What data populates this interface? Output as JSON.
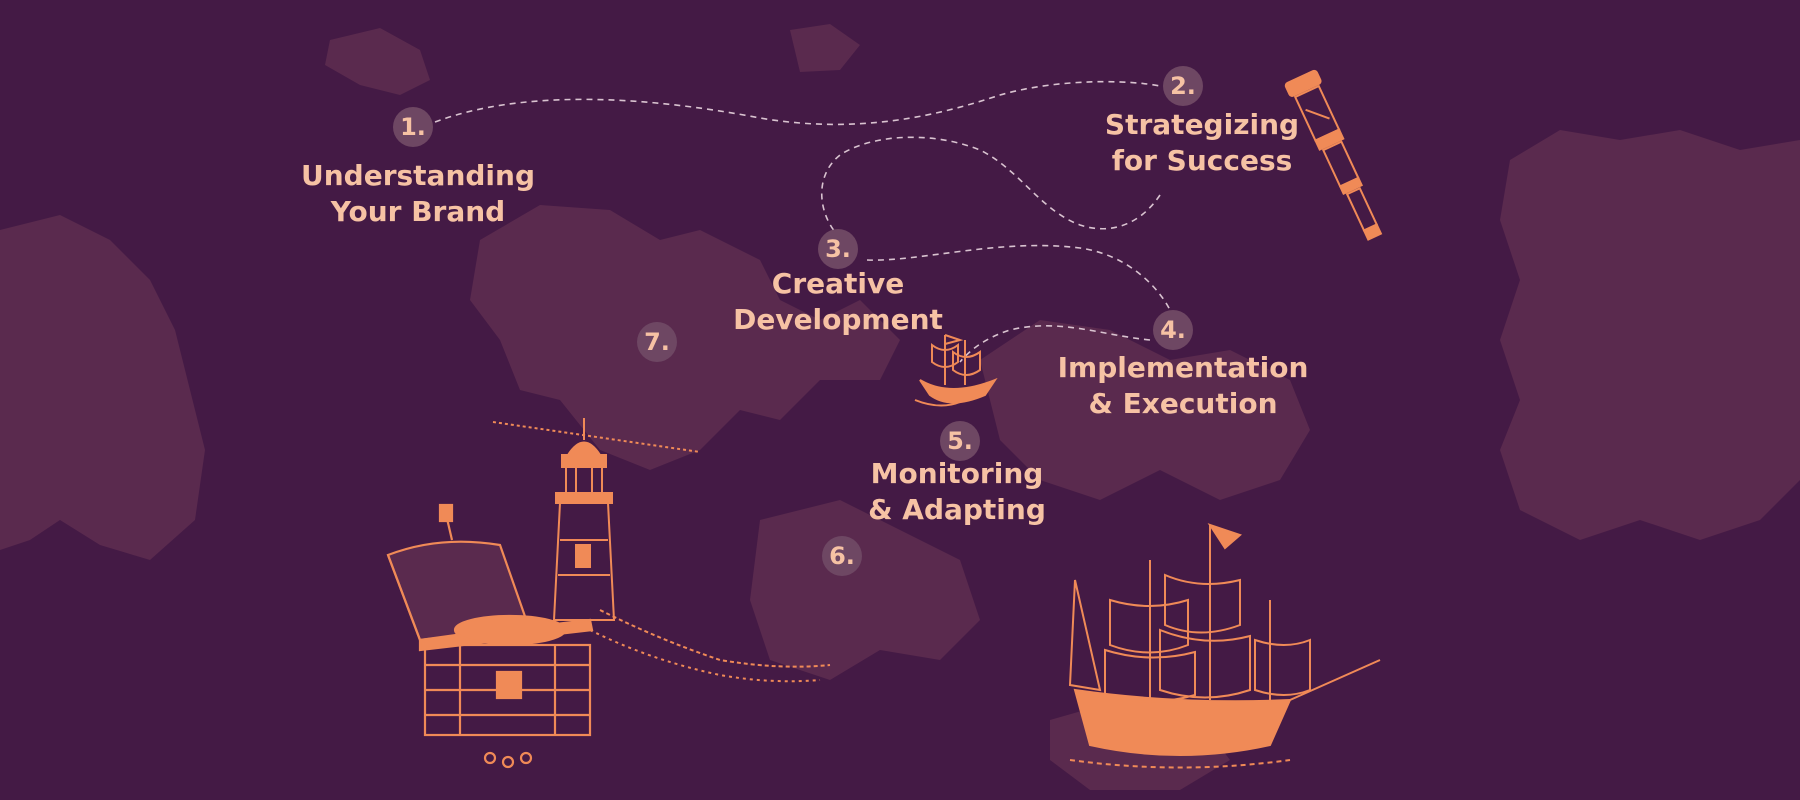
{
  "colors": {
    "background": "#441a45",
    "map_blob": "#5a2a4e",
    "badge": "#6e4763",
    "label_text": "#f6c2a4",
    "illustration": "#f08a57",
    "path_dash": "#d9c3d0"
  },
  "steps": [
    {
      "number": "1.",
      "lines": [
        "Understanding",
        "Your Brand"
      ]
    },
    {
      "number": "2.",
      "lines": [
        "Strategizing",
        "for Success"
      ]
    },
    {
      "number": "3.",
      "lines": [
        "Creative",
        "Development"
      ]
    },
    {
      "number": "4.",
      "lines": [
        "Implementation",
        "& Execution"
      ]
    },
    {
      "number": "5.",
      "lines": [
        "Monitoring",
        "& Adapting"
      ]
    },
    {
      "number": "6.",
      "lines": []
    },
    {
      "number": "7.",
      "lines": []
    }
  ],
  "illustrations": [
    {
      "icon": "spyglass-icon"
    },
    {
      "icon": "small-ship-icon"
    },
    {
      "icon": "treasure-chest-icon"
    },
    {
      "icon": "lighthouse-icon"
    },
    {
      "icon": "galleon-icon"
    }
  ]
}
